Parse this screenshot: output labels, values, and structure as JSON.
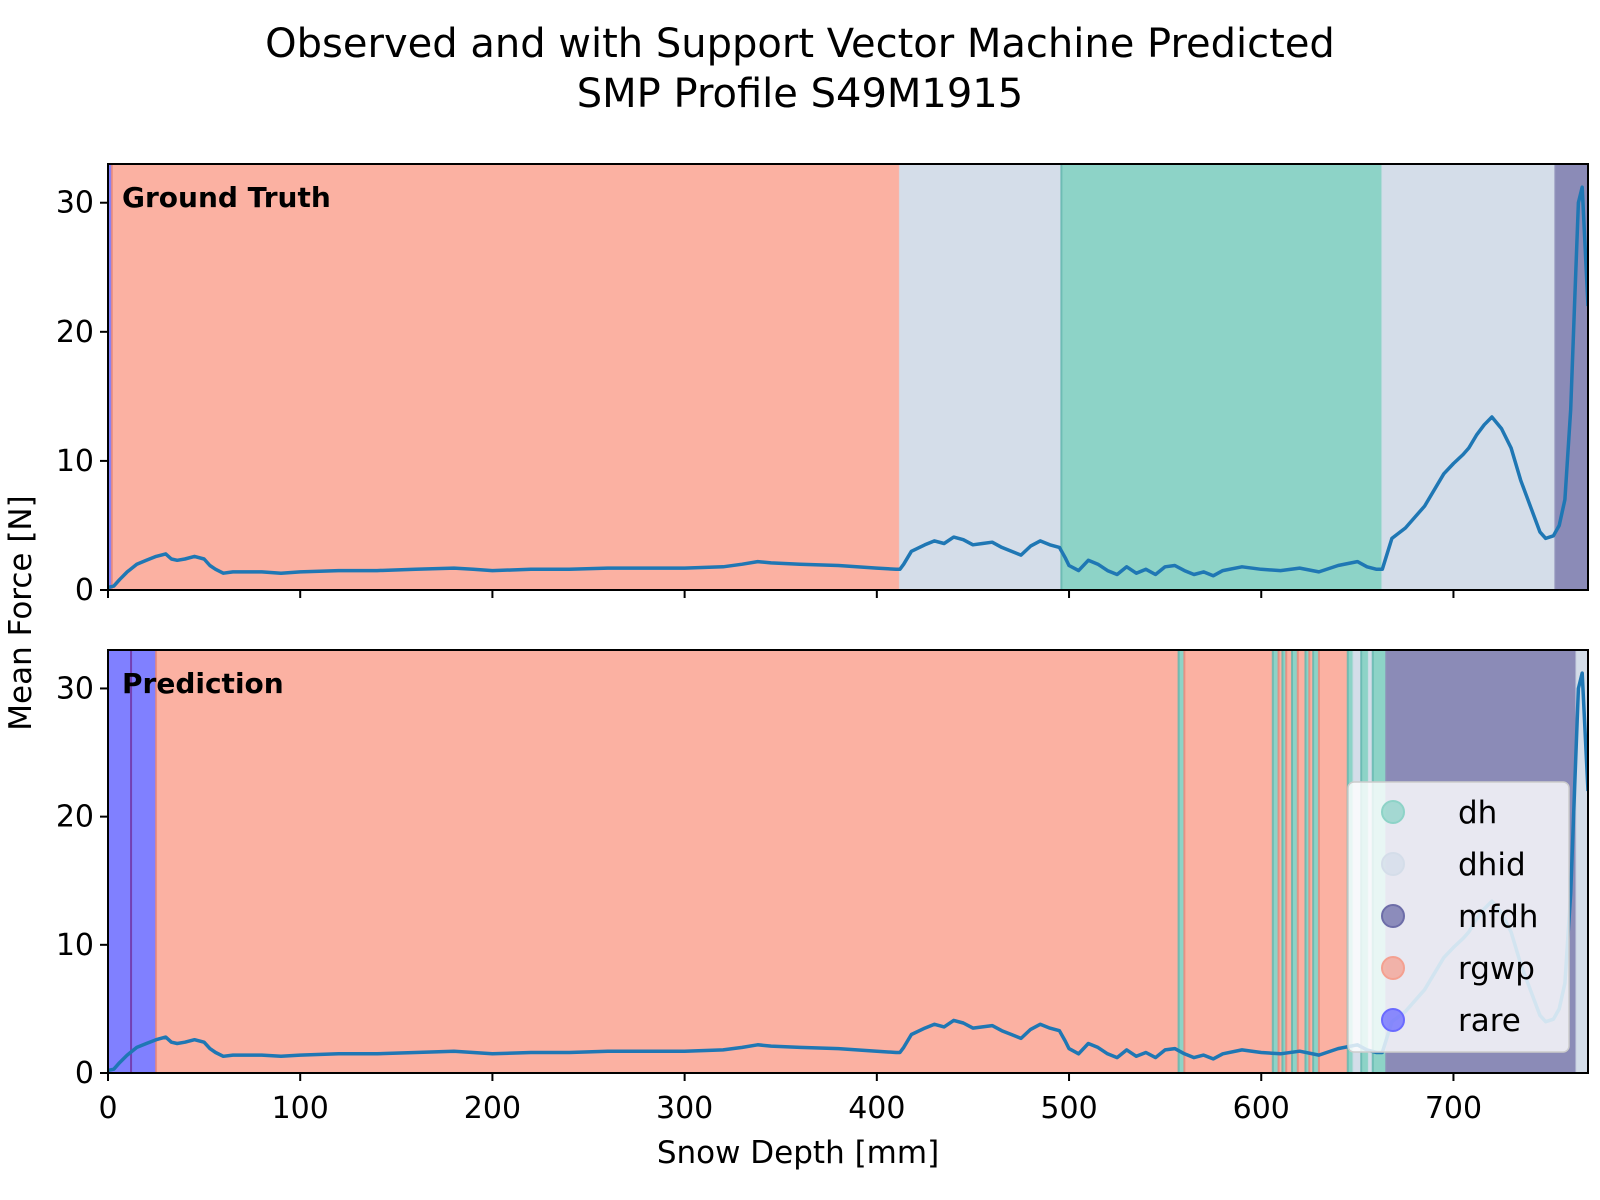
{
  "chart_data": {
    "type": "line",
    "title_line1": "Observed and with Support Vector Machine Predicted",
    "title_line2": "SMP Profile S49M1915",
    "xlabel": "Snow Depth [mm]",
    "ylabel": "Mean Force [N]",
    "xlim": [
      0,
      770
    ],
    "ylim": [
      0,
      33
    ],
    "xticks": [
      0,
      100,
      200,
      300,
      400,
      500,
      600,
      700
    ],
    "yticks": [
      0,
      10,
      20,
      30
    ],
    "grid": false,
    "legend_position": "lower-right",
    "colors": {
      "dh": "#8dd3c7",
      "dhid": "#d4dde9",
      "mfdh": "#8b8bb7",
      "rgwp": "#fbb1a2",
      "rare": "#8080ff",
      "line": "#1f77b4",
      "divider_dh": "#5fb6ad",
      "divider_rgwp": "#e8877a",
      "divider_rare": "#7030a0"
    },
    "legend": [
      {
        "label": "dh",
        "color": "#8dd3c7"
      },
      {
        "label": "dhid",
        "color": "#d4dde9"
      },
      {
        "label": "mfdh",
        "color": "#6d6da8"
      },
      {
        "label": "rgwp",
        "color": "#f4a090"
      },
      {
        "label": "rare",
        "color": "#6a6aff"
      }
    ],
    "panels": [
      {
        "label": "Ground Truth",
        "segments": [
          {
            "class": "rare",
            "start": 0,
            "end": 2
          },
          {
            "class": "rgwp",
            "start": 2,
            "end": 412
          },
          {
            "class": "dhid",
            "start": 412,
            "end": 496
          },
          {
            "class": "dh",
            "start": 496,
            "end": 663
          },
          {
            "class": "dhid",
            "start": 663,
            "end": 753
          },
          {
            "class": "mfdh",
            "start": 753,
            "end": 770
          }
        ]
      },
      {
        "label": "Prediction",
        "segments": [
          {
            "class": "rare",
            "start": 0,
            "end": 12
          },
          {
            "class": "rare",
            "start": 12,
            "end": 25
          },
          {
            "class": "rgwp",
            "start": 25,
            "end": 557
          },
          {
            "class": "dh",
            "start": 557,
            "end": 560
          },
          {
            "class": "rgwp",
            "start": 560,
            "end": 606
          },
          {
            "class": "dh",
            "start": 606,
            "end": 609
          },
          {
            "class": "rgwp",
            "start": 609,
            "end": 611
          },
          {
            "class": "dh",
            "start": 611,
            "end": 613
          },
          {
            "class": "rgwp",
            "start": 613,
            "end": 616
          },
          {
            "class": "dh",
            "start": 616,
            "end": 619
          },
          {
            "class": "rgwp",
            "start": 619,
            "end": 623
          },
          {
            "class": "dh",
            "start": 623,
            "end": 625
          },
          {
            "class": "rgwp",
            "start": 625,
            "end": 627
          },
          {
            "class": "dh",
            "start": 627,
            "end": 630
          },
          {
            "class": "rgwp",
            "start": 630,
            "end": 645
          },
          {
            "class": "dh",
            "start": 645,
            "end": 648
          },
          {
            "class": "dhid",
            "start": 648,
            "end": 652
          },
          {
            "class": "dh",
            "start": 652,
            "end": 656
          },
          {
            "class": "dhid",
            "start": 656,
            "end": 658
          },
          {
            "class": "dh",
            "start": 658,
            "end": 665
          },
          {
            "class": "mfdh",
            "start": 665,
            "end": 764
          },
          {
            "class": "dhid",
            "start": 764,
            "end": 770
          }
        ]
      }
    ],
    "series": [
      {
        "x": [
          0,
          3,
          6,
          10,
          15,
          20,
          25,
          30,
          33,
          36,
          40,
          45,
          50,
          53,
          56,
          60,
          65,
          70,
          80,
          90,
          100,
          120,
          140,
          160,
          180,
          190,
          200,
          220,
          240,
          260,
          280,
          300,
          320,
          330,
          338,
          345,
          360,
          380,
          400,
          410,
          412,
          414,
          418,
          425,
          430,
          435,
          440,
          445,
          450,
          455,
          460,
          465,
          470,
          475,
          480,
          485,
          490,
          495,
          498,
          500,
          505,
          510,
          515,
          520,
          525,
          530,
          535,
          540,
          545,
          550,
          555,
          560,
          565,
          570,
          575,
          580,
          590,
          600,
          610,
          620,
          630,
          640,
          650,
          655,
          660,
          663,
          668,
          675,
          685,
          695,
          700,
          705,
          708,
          712,
          716,
          720,
          725,
          730,
          735,
          740,
          745,
          748,
          752,
          755,
          758,
          761,
          763,
          765,
          767,
          770
        ],
        "y": [
          0.2,
          0.3,
          0.8,
          1.4,
          2.0,
          2.3,
          2.6,
          2.8,
          2.4,
          2.3,
          2.4,
          2.6,
          2.4,
          1.9,
          1.6,
          1.3,
          1.4,
          1.4,
          1.4,
          1.3,
          1.4,
          1.5,
          1.5,
          1.6,
          1.7,
          1.6,
          1.5,
          1.6,
          1.6,
          1.7,
          1.7,
          1.7,
          1.8,
          2.0,
          2.2,
          2.1,
          2.0,
          1.9,
          1.7,
          1.6,
          1.6,
          2.0,
          3.0,
          3.5,
          3.8,
          3.6,
          4.1,
          3.9,
          3.5,
          3.6,
          3.7,
          3.3,
          3.0,
          2.7,
          3.4,
          3.8,
          3.5,
          3.3,
          2.5,
          1.9,
          1.5,
          2.3,
          2.0,
          1.5,
          1.2,
          1.8,
          1.3,
          1.6,
          1.2,
          1.8,
          1.9,
          1.5,
          1.2,
          1.4,
          1.1,
          1.5,
          1.8,
          1.6,
          1.5,
          1.7,
          1.4,
          1.9,
          2.2,
          1.8,
          1.6,
          1.6,
          4.0,
          4.8,
          6.5,
          9.0,
          9.8,
          10.5,
          11.0,
          12.0,
          12.8,
          13.4,
          12.5,
          11.0,
          8.5,
          6.5,
          4.5,
          4.0,
          4.2,
          5.0,
          7.0,
          14.0,
          22.0,
          30.0,
          31.2,
          22.0
        ]
      }
    ]
  }
}
